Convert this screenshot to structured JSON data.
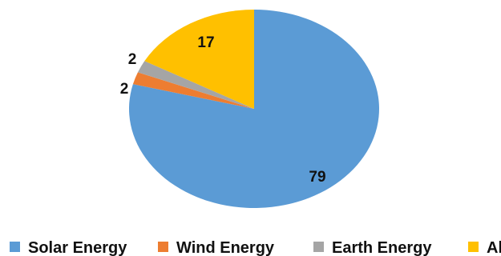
{
  "chart_data": {
    "type": "pie",
    "title": "",
    "categories": [
      "Solar Energy",
      "Wind Energy",
      "Earth Energy",
      "All"
    ],
    "values": [
      79,
      2,
      2,
      17
    ],
    "data_labels": [
      "79",
      "2",
      "2",
      "17"
    ],
    "colors": [
      "#5B9BD5",
      "#ED7D31",
      "#A5A5A5",
      "#FFC000"
    ],
    "legend_position": "bottom"
  }
}
